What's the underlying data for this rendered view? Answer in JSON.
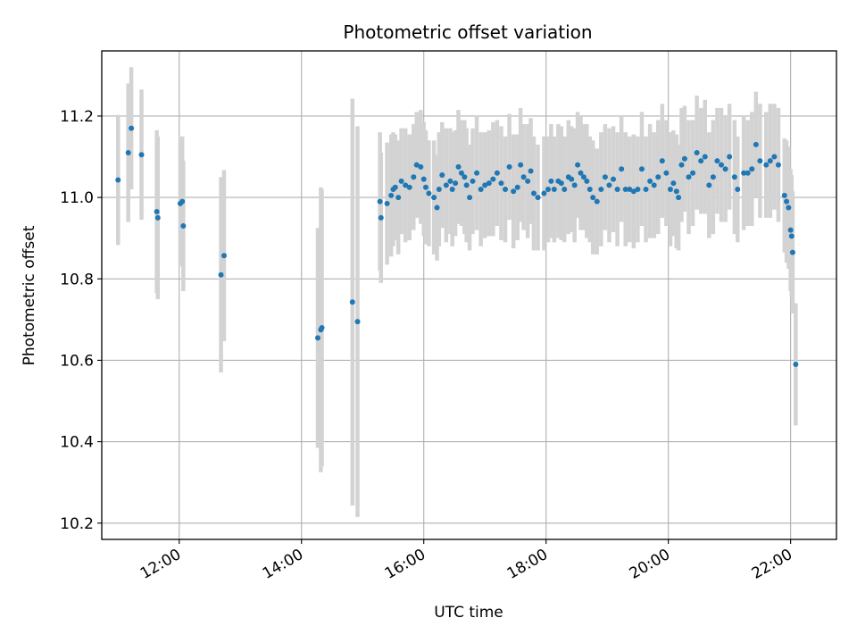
{
  "chart_data": {
    "type": "scatter",
    "title": "Photometric offset variation",
    "xlabel": "UTC time",
    "ylabel": "Photometric offset",
    "x_unit": "hours UTC",
    "xlim": [
      "10:44",
      "22:45"
    ],
    "ylim": [
      10.16,
      11.36
    ],
    "x_ticks": [
      "12:00",
      "14:00",
      "16:00",
      "18:00",
      "20:00",
      "22:00"
    ],
    "y_ticks": [
      "10.2",
      "10.4",
      "10.6",
      "10.8",
      "11.0",
      "11.2"
    ],
    "grid": true,
    "colors": {
      "points": "#1f77b4",
      "error_bars": "#d3d3d3",
      "grid": "#b0b0b0"
    },
    "series": [
      {
        "points": [
          [
            "11:00",
            11.043,
            0.16
          ],
          [
            "11:10",
            11.11,
            0.17
          ],
          [
            "11:13",
            11.17,
            0.15
          ],
          [
            "11:23",
            11.105,
            0.16
          ],
          [
            "11:38",
            10.965,
            0.2
          ],
          [
            "11:39",
            10.95,
            0.2
          ],
          [
            "12:01",
            10.985,
            0.15
          ],
          [
            "12:03",
            10.99,
            0.16
          ],
          [
            "12:04",
            10.93,
            0.16
          ],
          [
            "12:41",
            10.81,
            0.24
          ],
          [
            "12:44",
            10.857,
            0.21
          ],
          [
            "14:16",
            10.655,
            0.27
          ],
          [
            "14:19",
            10.675,
            0.35
          ],
          [
            "14:20",
            10.68,
            0.34
          ],
          [
            "14:50",
            10.743,
            0.5
          ],
          [
            "14:55",
            10.695,
            0.48
          ],
          [
            "15:17",
            10.99,
            0.17
          ],
          [
            "15:18",
            10.95,
            0.16
          ],
          [
            "15:24",
            10.985,
            0.15
          ],
          [
            "15:28",
            11.005,
            0.15
          ],
          [
            "15:30",
            11.02,
            0.14
          ],
          [
            "15:32",
            11.025,
            0.13
          ],
          [
            "15:35",
            11.0,
            0.14
          ],
          [
            "15:38",
            11.04,
            0.13
          ],
          [
            "15:42",
            11.03,
            0.14
          ],
          [
            "15:46",
            11.025,
            0.13
          ],
          [
            "15:50",
            11.05,
            0.13
          ],
          [
            "15:53",
            11.08,
            0.13
          ],
          [
            "15:57",
            11.075,
            0.14
          ],
          [
            "16:00",
            11.045,
            0.14
          ],
          [
            "16:02",
            11.025,
            0.14
          ],
          [
            "16:05",
            11.01,
            0.13
          ],
          [
            "16:10",
            11.0,
            0.14
          ],
          [
            "16:13",
            10.975,
            0.13
          ],
          [
            "16:15",
            11.02,
            0.14
          ],
          [
            "16:18",
            11.055,
            0.13
          ],
          [
            "16:22",
            11.03,
            0.14
          ],
          [
            "16:26",
            11.04,
            0.13
          ],
          [
            "16:28",
            11.02,
            0.14
          ],
          [
            "16:31",
            11.035,
            0.13
          ],
          [
            "16:34",
            11.075,
            0.14
          ],
          [
            "16:37",
            11.06,
            0.13
          ],
          [
            "16:40",
            11.05,
            0.14
          ],
          [
            "16:42",
            11.03,
            0.14
          ],
          [
            "16:45",
            11.0,
            0.13
          ],
          [
            "16:48",
            11.04,
            0.13
          ],
          [
            "16:52",
            11.06,
            0.14
          ],
          [
            "16:56",
            11.02,
            0.14
          ],
          [
            "17:00",
            11.03,
            0.13
          ],
          [
            "17:04",
            11.035,
            0.13
          ],
          [
            "17:08",
            11.045,
            0.14
          ],
          [
            "17:12",
            11.06,
            0.13
          ],
          [
            "17:16",
            11.035,
            0.14
          ],
          [
            "17:20",
            11.02,
            0.13
          ],
          [
            "17:24",
            11.075,
            0.13
          ],
          [
            "17:28",
            11.015,
            0.14
          ],
          [
            "17:32",
            11.025,
            0.13
          ],
          [
            "17:35",
            11.08,
            0.14
          ],
          [
            "17:38",
            11.05,
            0.13
          ],
          [
            "17:42",
            11.04,
            0.14
          ],
          [
            "17:45",
            11.065,
            0.13
          ],
          [
            "17:48",
            11.01,
            0.14
          ],
          [
            "17:52",
            11.0,
            0.13
          ],
          [
            "17:58",
            11.01,
            0.14
          ],
          [
            "18:02",
            11.02,
            0.13
          ],
          [
            "18:05",
            11.04,
            0.14
          ],
          [
            "18:08",
            11.02,
            0.13
          ],
          [
            "18:12",
            11.04,
            0.14
          ],
          [
            "18:15",
            11.035,
            0.14
          ],
          [
            "18:18",
            11.02,
            0.13
          ],
          [
            "18:22",
            11.05,
            0.14
          ],
          [
            "18:25",
            11.045,
            0.13
          ],
          [
            "18:28",
            11.03,
            0.14
          ],
          [
            "18:31",
            11.08,
            0.13
          ],
          [
            "18:34",
            11.06,
            0.14
          ],
          [
            "18:37",
            11.05,
            0.13
          ],
          [
            "18:40",
            11.04,
            0.14
          ],
          [
            "18:43",
            11.02,
            0.13
          ],
          [
            "18:46",
            11.0,
            0.14
          ],
          [
            "18:50",
            10.99,
            0.13
          ],
          [
            "18:54",
            11.02,
            0.14
          ],
          [
            "18:58",
            11.05,
            0.13
          ],
          [
            "19:02",
            11.03,
            0.14
          ],
          [
            "19:06",
            11.045,
            0.13
          ],
          [
            "19:10",
            11.02,
            0.14
          ],
          [
            "19:14",
            11.07,
            0.13
          ],
          [
            "19:18",
            11.02,
            0.14
          ],
          [
            "19:22",
            11.02,
            0.13
          ],
          [
            "19:26",
            11.015,
            0.14
          ],
          [
            "19:30",
            11.02,
            0.13
          ],
          [
            "19:34",
            11.07,
            0.14
          ],
          [
            "19:38",
            11.02,
            0.13
          ],
          [
            "19:42",
            11.04,
            0.14
          ],
          [
            "19:46",
            11.03,
            0.13
          ],
          [
            "19:50",
            11.05,
            0.14
          ],
          [
            "19:54",
            11.09,
            0.14
          ],
          [
            "19:58",
            11.06,
            0.13
          ],
          [
            "20:02",
            11.02,
            0.14
          ],
          [
            "20:05",
            11.035,
            0.13
          ],
          [
            "20:08",
            11.015,
            0.14
          ],
          [
            "20:10",
            11.0,
            0.13
          ],
          [
            "20:13",
            11.08,
            0.14
          ],
          [
            "20:16",
            11.095,
            0.13
          ],
          [
            "20:20",
            11.05,
            0.14
          ],
          [
            "20:24",
            11.06,
            0.13
          ],
          [
            "20:28",
            11.11,
            0.14
          ],
          [
            "20:32",
            11.09,
            0.13
          ],
          [
            "20:36",
            11.1,
            0.14
          ],
          [
            "20:40",
            11.03,
            0.13
          ],
          [
            "20:44",
            11.05,
            0.14
          ],
          [
            "20:48",
            11.09,
            0.13
          ],
          [
            "20:52",
            11.08,
            0.14
          ],
          [
            "20:56",
            11.07,
            0.13
          ],
          [
            "21:00",
            11.1,
            0.13
          ],
          [
            "21:05",
            11.05,
            0.14
          ],
          [
            "21:08",
            11.02,
            0.13
          ],
          [
            "21:14",
            11.06,
            0.14
          ],
          [
            "21:18",
            11.06,
            0.13
          ],
          [
            "21:22",
            11.07,
            0.14
          ],
          [
            "21:26",
            11.13,
            0.13
          ],
          [
            "21:30",
            11.09,
            0.14
          ],
          [
            "21:36",
            11.08,
            0.13
          ],
          [
            "21:40",
            11.09,
            0.14
          ],
          [
            "21:44",
            11.1,
            0.13
          ],
          [
            "21:48",
            11.08,
            0.14
          ],
          [
            "21:54",
            11.005,
            0.14
          ],
          [
            "21:56",
            10.99,
            0.15
          ],
          [
            "21:58",
            10.975,
            0.15
          ],
          [
            "22:00",
            10.92,
            0.15
          ],
          [
            "22:01",
            10.905,
            0.15
          ],
          [
            "22:02",
            10.865,
            0.15
          ],
          [
            "22:05",
            10.59,
            0.15
          ]
        ]
      }
    ]
  }
}
